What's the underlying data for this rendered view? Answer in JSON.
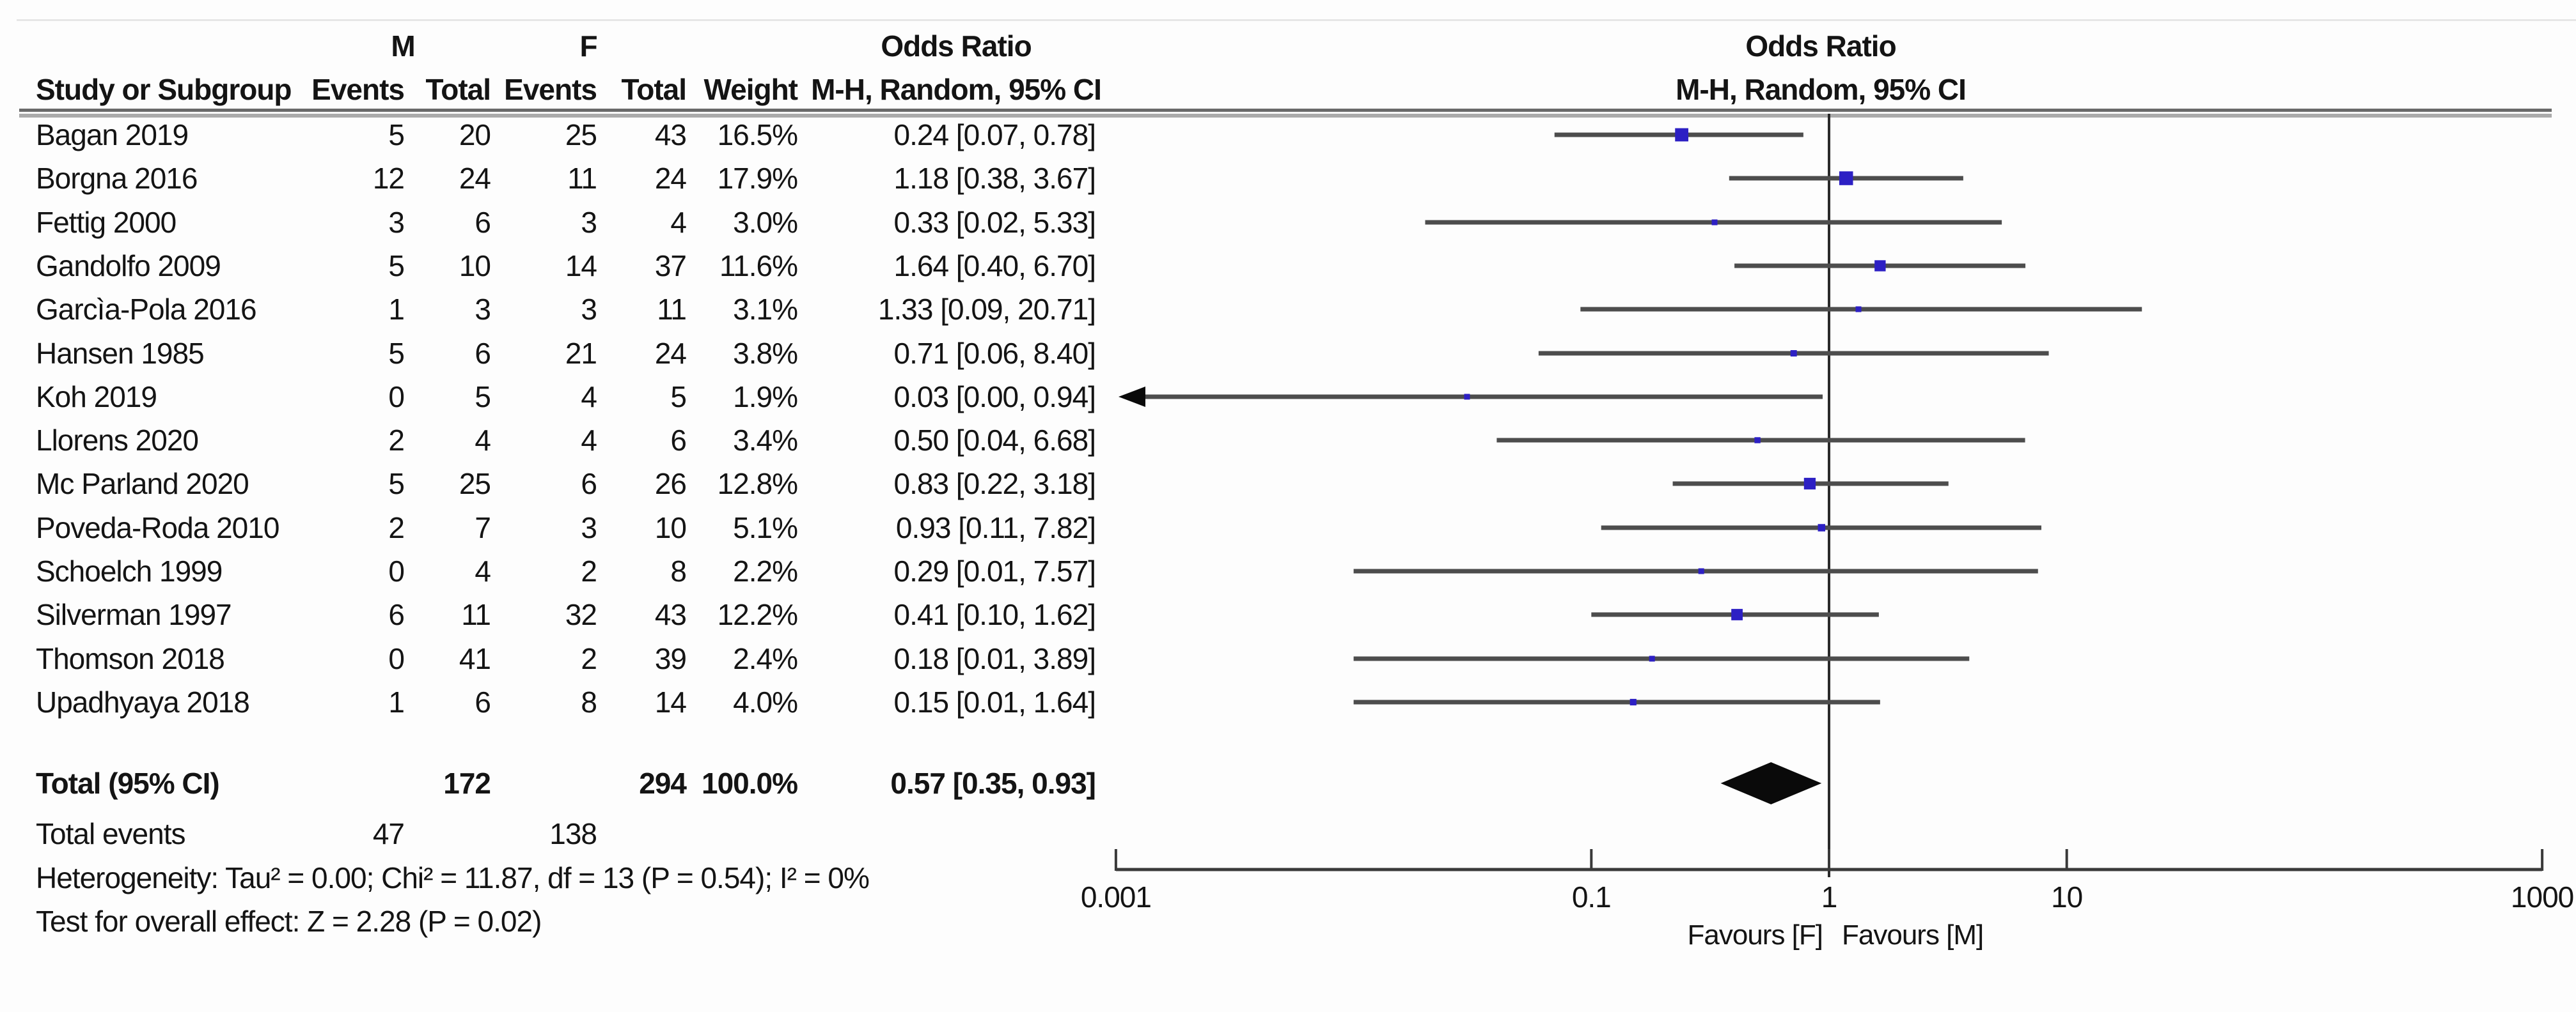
{
  "header": {
    "group_m": "M",
    "group_f": "F",
    "study": "Study or Subgroup",
    "events": "Events",
    "total": "Total",
    "weight": "Weight",
    "or_title": "Odds Ratio",
    "or_sub": "M-H, Random, 95% CI"
  },
  "chart_data": {
    "type": "forest",
    "effect_measure": "Odds Ratio, M-H, Random, 95% CI",
    "x_axis": {
      "scale": "log",
      "range": [
        0.001,
        1000
      ],
      "ticks": [
        0.001,
        0.1,
        1,
        10,
        1000
      ],
      "tick_labels": [
        "0.001",
        "0.1",
        "1",
        "10",
        "1000"
      ],
      "left_label": "Favours [F]",
      "right_label": "Favours [M]"
    },
    "studies": [
      {
        "name": "Bagan 2019",
        "events_m": 5,
        "total_m": 20,
        "events_f": 25,
        "total_f": 43,
        "weight": "16.5%",
        "weight_pct": 16.5,
        "or": 0.24,
        "ci_low": 0.07,
        "ci_high": 0.78,
        "or_label": "0.24 [0.07, 0.78]",
        "arrow_low": false
      },
      {
        "name": "Borgna 2016",
        "events_m": 12,
        "total_m": 24,
        "events_f": 11,
        "total_f": 24,
        "weight": "17.9%",
        "weight_pct": 17.9,
        "or": 1.18,
        "ci_low": 0.38,
        "ci_high": 3.67,
        "or_label": "1.18 [0.38, 3.67]",
        "arrow_low": false
      },
      {
        "name": "Fettig 2000",
        "events_m": 3,
        "total_m": 6,
        "events_f": 3,
        "total_f": 4,
        "weight": "3.0%",
        "weight_pct": 3.0,
        "or": 0.33,
        "ci_low": 0.02,
        "ci_high": 5.33,
        "or_label": "0.33 [0.02, 5.33]",
        "arrow_low": false
      },
      {
        "name": "Gandolfo 2009",
        "events_m": 5,
        "total_m": 10,
        "events_f": 14,
        "total_f": 37,
        "weight": "11.6%",
        "weight_pct": 11.6,
        "or": 1.64,
        "ci_low": 0.4,
        "ci_high": 6.7,
        "or_label": "1.64 [0.40, 6.70]",
        "arrow_low": false
      },
      {
        "name": "Garcìa-Pola 2016",
        "events_m": 1,
        "total_m": 3,
        "events_f": 3,
        "total_f": 11,
        "weight": "3.1%",
        "weight_pct": 3.1,
        "or": 1.33,
        "ci_low": 0.09,
        "ci_high": 20.71,
        "or_label": "1.33 [0.09, 20.71]",
        "arrow_low": false
      },
      {
        "name": "Hansen 1985",
        "events_m": 5,
        "total_m": 6,
        "events_f": 21,
        "total_f": 24,
        "weight": "3.8%",
        "weight_pct": 3.8,
        "or": 0.71,
        "ci_low": 0.06,
        "ci_high": 8.4,
        "or_label": "0.71 [0.06, 8.40]",
        "arrow_low": false
      },
      {
        "name": "Koh 2019",
        "events_m": 0,
        "total_m": 5,
        "events_f": 4,
        "total_f": 5,
        "weight": "1.9%",
        "weight_pct": 1.9,
        "or": 0.03,
        "ci_low": 0.001,
        "ci_high": 0.94,
        "or_label": "0.03 [0.00, 0.94]",
        "arrow_low": true
      },
      {
        "name": "Llorens 2020",
        "events_m": 2,
        "total_m": 4,
        "events_f": 4,
        "total_f": 6,
        "weight": "3.4%",
        "weight_pct": 3.4,
        "or": 0.5,
        "ci_low": 0.04,
        "ci_high": 6.68,
        "or_label": "0.50 [0.04, 6.68]",
        "arrow_low": false
      },
      {
        "name": "Mc Parland 2020",
        "events_m": 5,
        "total_m": 25,
        "events_f": 6,
        "total_f": 26,
        "weight": "12.8%",
        "weight_pct": 12.8,
        "or": 0.83,
        "ci_low": 0.22,
        "ci_high": 3.18,
        "or_label": "0.83 [0.22, 3.18]",
        "arrow_low": false
      },
      {
        "name": "Poveda-Roda 2010",
        "events_m": 2,
        "total_m": 7,
        "events_f": 3,
        "total_f": 10,
        "weight": "5.1%",
        "weight_pct": 5.1,
        "or": 0.93,
        "ci_low": 0.11,
        "ci_high": 7.82,
        "or_label": "0.93 [0.11, 7.82]",
        "arrow_low": false
      },
      {
        "name": "Schoelch 1999",
        "events_m": 0,
        "total_m": 4,
        "events_f": 2,
        "total_f": 8,
        "weight": "2.2%",
        "weight_pct": 2.2,
        "or": 0.29,
        "ci_low": 0.01,
        "ci_high": 7.57,
        "or_label": "0.29 [0.01, 7.57]",
        "arrow_low": false
      },
      {
        "name": "Silverman 1997",
        "events_m": 6,
        "total_m": 11,
        "events_f": 32,
        "total_f": 43,
        "weight": "12.2%",
        "weight_pct": 12.2,
        "or": 0.41,
        "ci_low": 0.1,
        "ci_high": 1.62,
        "or_label": "0.41 [0.10, 1.62]",
        "arrow_low": false
      },
      {
        "name": "Thomson 2018",
        "events_m": 0,
        "total_m": 41,
        "events_f": 2,
        "total_f": 39,
        "weight": "2.4%",
        "weight_pct": 2.4,
        "or": 0.18,
        "ci_low": 0.01,
        "ci_high": 3.89,
        "or_label": "0.18 [0.01, 3.89]",
        "arrow_low": false
      },
      {
        "name": "Upadhyaya 2018",
        "events_m": 1,
        "total_m": 6,
        "events_f": 8,
        "total_f": 14,
        "weight": "4.0%",
        "weight_pct": 4.0,
        "or": 0.15,
        "ci_low": 0.01,
        "ci_high": 1.64,
        "or_label": "0.15 [0.01, 1.64]",
        "arrow_low": false
      }
    ],
    "total": {
      "label": "Total (95% CI)",
      "total_m": 172,
      "total_f": 294,
      "weight": "100.0%",
      "or": 0.57,
      "ci_low": 0.35,
      "ci_high": 0.93,
      "or_label": "0.57 [0.35, 0.93]"
    },
    "total_events": {
      "label": "Total events",
      "events_m": 47,
      "events_f": 138
    }
  },
  "footer": {
    "heterogeneity": "Heterogeneity: Tau² = 0.00; Chi² = 11.87, df = 13 (P = 0.54); I² = 0%",
    "overall_effect": "Test for overall effect: Z = 2.28 (P = 0.02)"
  },
  "colors": {
    "marker": "#2d20c4",
    "ci_line": "#4d4d4d",
    "axis": "#3a3a3a",
    "diamond": "#0a0a0a",
    "null_line": "#2a2a2a"
  }
}
